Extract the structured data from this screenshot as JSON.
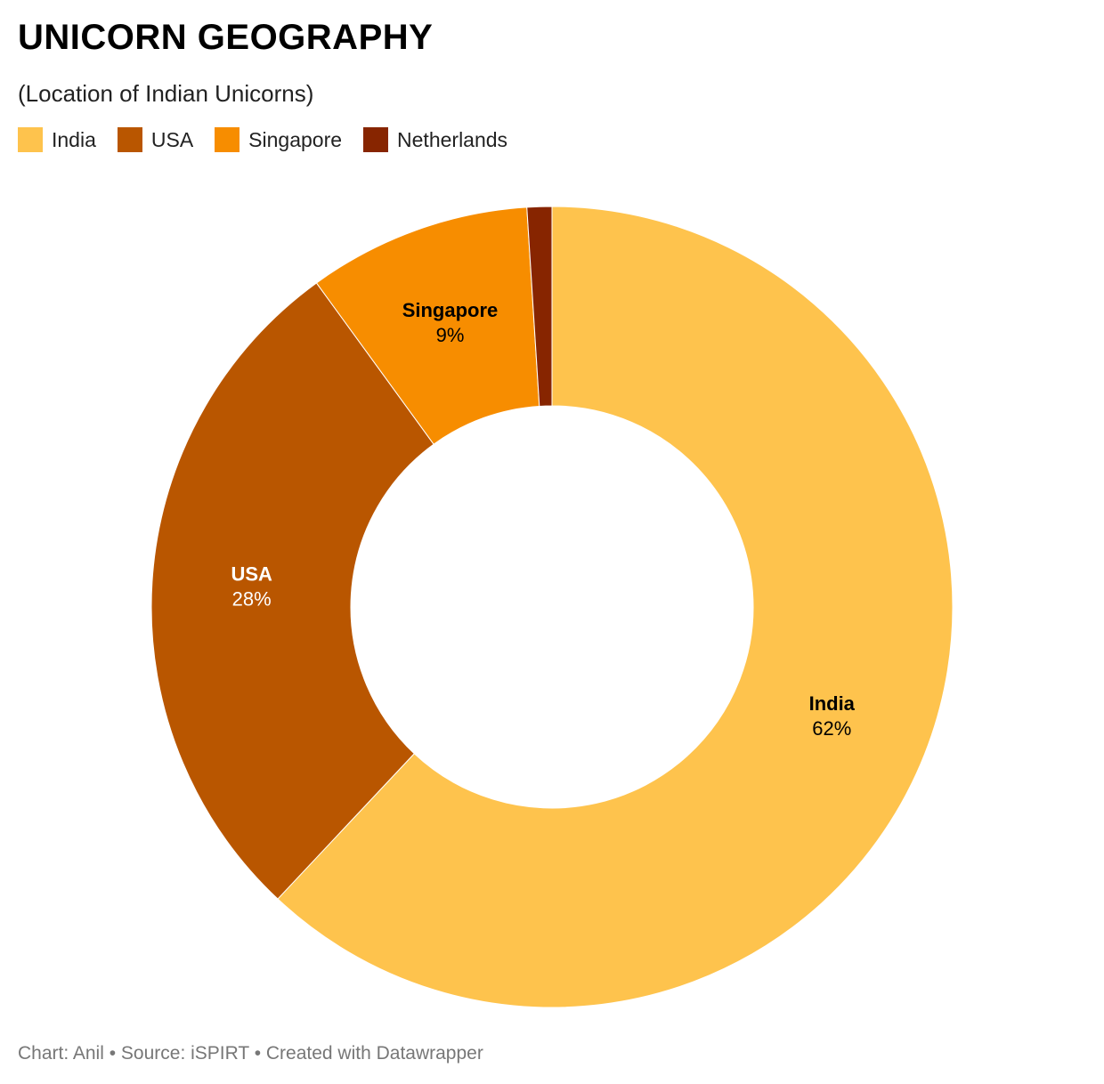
{
  "chart_data": {
    "type": "donut",
    "title": "UNICORN GEOGRAPHY",
    "subtitle": "(Location of Indian Unicorns)",
    "categories": [
      "India",
      "USA",
      "Singapore",
      "Netherlands"
    ],
    "values": [
      62,
      28,
      9,
      1
    ],
    "value_labels": [
      "62%",
      "28%",
      "9%",
      null
    ],
    "colors": [
      "#fec34d",
      "#b95600",
      "#f78d00",
      "#872500"
    ],
    "label_colors": [
      "#000000",
      "#ffffff",
      "#000000",
      "#ffffff"
    ],
    "footer": "Chart: Anil • Source: iSPIRT • Created with Datawrapper"
  }
}
